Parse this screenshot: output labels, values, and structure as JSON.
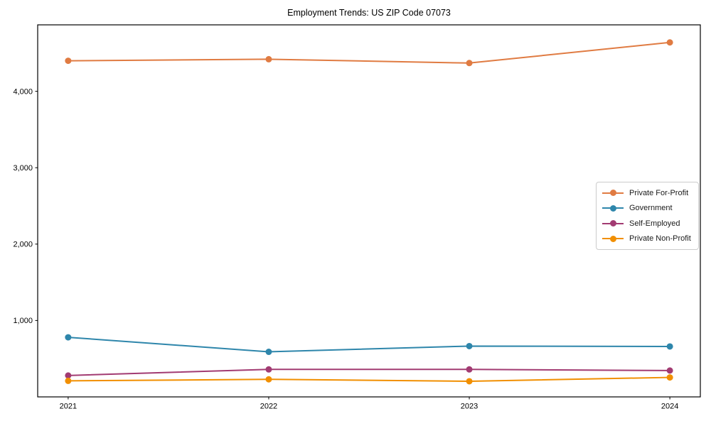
{
  "chart_data": {
    "type": "line",
    "title": "Employment Trends: US ZIP Code 07073",
    "xlabel": "",
    "ylabel": "",
    "x": [
      2021,
      2022,
      2023,
      2024
    ],
    "x_tick_labels": [
      "2021",
      "2022",
      "2023",
      "2024"
    ],
    "y_ticks": [
      1000,
      2000,
      3000,
      4000
    ],
    "y_tick_labels": [
      "1,000",
      "2,000",
      "3,000",
      "4,000"
    ],
    "ylim": [
      0,
      4870
    ],
    "grid": false,
    "legend_position": "center-right",
    "marker": "circle",
    "axis_color": "#000000",
    "series": [
      {
        "name": "Private For-Profit",
        "color": "#E07B42",
        "values": [
          4400,
          4420,
          4370,
          4640
        ]
      },
      {
        "name": "Government",
        "color": "#2E86AB",
        "values": [
          780,
          590,
          665,
          660
        ]
      },
      {
        "name": "Self-Employed",
        "color": "#A23B72",
        "values": [
          280,
          360,
          360,
          345
        ]
      },
      {
        "name": "Private Non-Profit",
        "color": "#F18F01",
        "values": [
          210,
          230,
          205,
          255
        ]
      }
    ]
  }
}
